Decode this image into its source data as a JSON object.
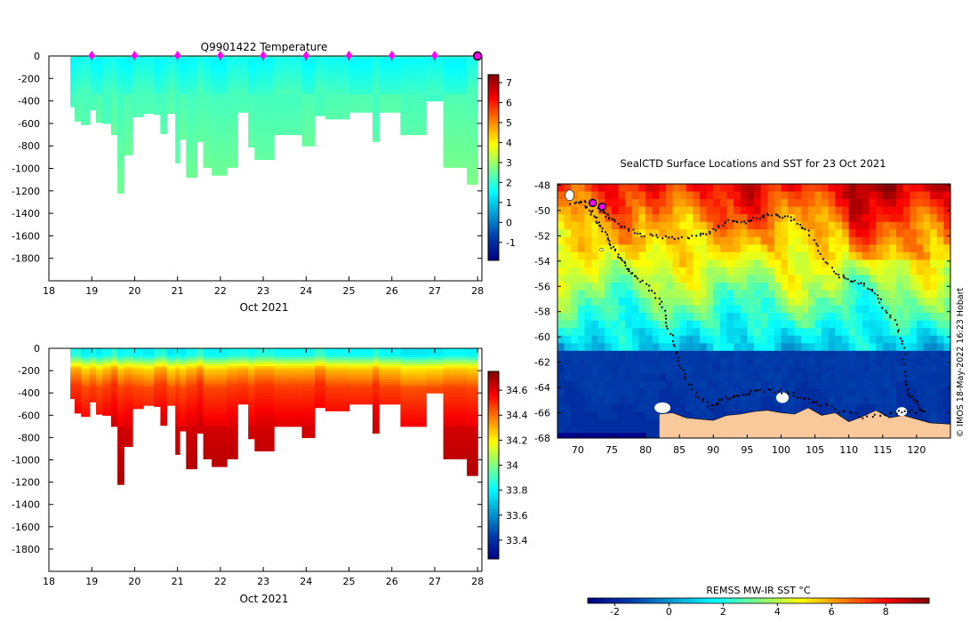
{
  "chart_data": [
    {
      "type": "heatmap",
      "id": "temperature-section",
      "title": "Q9901422  Temperature",
      "xlabel": "Oct 2021",
      "ylabel": "",
      "xlim": [
        18,
        28.1
      ],
      "ylim": [
        -2000,
        0
      ],
      "xticks": [
        18,
        19,
        20,
        21,
        22,
        23,
        24,
        25,
        26,
        27,
        28
      ],
      "yticks": [
        0,
        -200,
        -400,
        -600,
        -800,
        -1000,
        -1200,
        -1400,
        -1600,
        -1800
      ],
      "colorbar": {
        "min": -1.9,
        "max": 7.4,
        "ticks": [
          7,
          6,
          5,
          4,
          3,
          2,
          1,
          0,
          -1
        ]
      },
      "markers_x": [
        19,
        20,
        21,
        22,
        23,
        24,
        25,
        26,
        27
      ],
      "marker_current_x": 28,
      "profiles": [
        {
          "x0": 18.5,
          "x1": 18.6,
          "depth": 450
        },
        {
          "x0": 18.6,
          "x1": 18.75,
          "depth": 580
        },
        {
          "x0": 18.75,
          "x1": 18.95,
          "depth": 610
        },
        {
          "x0": 18.95,
          "x1": 19.1,
          "depth": 480
        },
        {
          "x0": 19.1,
          "x1": 19.25,
          "depth": 590
        },
        {
          "x0": 19.25,
          "x1": 19.45,
          "depth": 600
        },
        {
          "x0": 19.45,
          "x1": 19.6,
          "depth": 700
        },
        {
          "x0": 19.6,
          "x1": 19.75,
          "depth": 1220
        },
        {
          "x0": 19.75,
          "x1": 19.95,
          "depth": 880
        },
        {
          "x0": 19.95,
          "x1": 20.2,
          "depth": 540
        },
        {
          "x0": 20.2,
          "x1": 20.45,
          "depth": 510
        },
        {
          "x0": 20.45,
          "x1": 20.6,
          "depth": 520
        },
        {
          "x0": 20.6,
          "x1": 20.75,
          "depth": 690
        },
        {
          "x0": 20.75,
          "x1": 20.95,
          "depth": 510
        },
        {
          "x0": 20.95,
          "x1": 21.05,
          "depth": 950
        },
        {
          "x0": 21.05,
          "x1": 21.2,
          "depth": 740
        },
        {
          "x0": 21.2,
          "x1": 21.45,
          "depth": 1080
        },
        {
          "x0": 21.45,
          "x1": 21.6,
          "depth": 760
        },
        {
          "x0": 21.6,
          "x1": 21.8,
          "depth": 990
        },
        {
          "x0": 21.8,
          "x1": 22.15,
          "depth": 1060
        },
        {
          "x0": 22.15,
          "x1": 22.4,
          "depth": 990
        },
        {
          "x0": 22.4,
          "x1": 22.65,
          "depth": 500
        },
        {
          "x0": 22.65,
          "x1": 22.8,
          "depth": 810
        },
        {
          "x0": 22.8,
          "x1": 23.25,
          "depth": 920
        },
        {
          "x0": 23.25,
          "x1": 23.9,
          "depth": 700
        },
        {
          "x0": 23.9,
          "x1": 24.2,
          "depth": 800
        },
        {
          "x0": 24.2,
          "x1": 24.45,
          "depth": 530
        },
        {
          "x0": 24.45,
          "x1": 25.0,
          "depth": 560
        },
        {
          "x0": 25.0,
          "x1": 25.55,
          "depth": 500
        },
        {
          "x0": 25.55,
          "x1": 25.7,
          "depth": 760
        },
        {
          "x0": 25.7,
          "x1": 26.2,
          "depth": 500
        },
        {
          "x0": 26.2,
          "x1": 26.8,
          "depth": 700
        },
        {
          "x0": 26.8,
          "x1": 27.2,
          "depth": 400
        },
        {
          "x0": 27.2,
          "x1": 27.75,
          "depth": 990
        },
        {
          "x0": 27.75,
          "x1": 28.0,
          "depth": 1140
        }
      ]
    },
    {
      "type": "heatmap",
      "id": "salinity-section",
      "title": "",
      "xlabel": "Oct 2021",
      "ylabel": "",
      "xlim": [
        18,
        28.1
      ],
      "ylim": [
        -2000,
        0
      ],
      "xticks": [
        18,
        19,
        20,
        21,
        22,
        23,
        24,
        25,
        26,
        27,
        28
      ],
      "yticks": [
        0,
        -200,
        -400,
        -600,
        -800,
        -1000,
        -1200,
        -1400,
        -1600,
        -1800
      ],
      "colorbar": {
        "min": 33.25,
        "max": 34.75,
        "ticks": [
          "34.6",
          "34.4",
          "34.2",
          "34",
          "33.8",
          "33.6",
          "33.4"
        ]
      }
    },
    {
      "type": "heatmap",
      "id": "sst-map",
      "title": "SealCTD Surface Locations and SST for 23 Oct 2021",
      "xlabel": "",
      "ylabel": "",
      "xlim": [
        67,
        125
      ],
      "ylim": [
        -68,
        -47.9
      ],
      "xticks": [
        70,
        75,
        80,
        85,
        90,
        95,
        100,
        105,
        110,
        115,
        120
      ],
      "yticks": [
        -48,
        -50,
        -52,
        -54,
        -56,
        -58,
        -60,
        -62,
        -64,
        -66,
        -68
      ],
      "colorbar": {
        "label": "REMSS MW-IR SST °C",
        "min": -3,
        "max": 9.6,
        "ticks": [
          -2,
          0,
          2,
          4,
          6,
          8
        ]
      },
      "track": [
        [
          69,
          -49.4
        ],
        [
          71,
          -49.3
        ],
        [
          73,
          -49.7
        ],
        [
          74,
          -50.3
        ],
        [
          75,
          -50.6
        ],
        [
          77,
          -51.4
        ],
        [
          79,
          -51.9
        ],
        [
          82,
          -52.1
        ],
        [
          85,
          -52.2
        ],
        [
          88,
          -52.0
        ],
        [
          90,
          -51.6
        ],
        [
          92,
          -50.8
        ],
        [
          94,
          -51.0
        ],
        [
          96,
          -50.7
        ],
        [
          98,
          -50.4
        ],
        [
          100,
          -50.4
        ],
        [
          102,
          -50.8
        ],
        [
          104,
          -51.7
        ],
        [
          106,
          -53.5
        ],
        [
          108,
          -55.0
        ],
        [
          110,
          -55.5
        ],
        [
          112,
          -55.8
        ],
        [
          114,
          -56.5
        ],
        [
          115,
          -57.8
        ],
        [
          117,
          -59.0
        ],
        [
          118,
          -61.0
        ],
        [
          118.5,
          -63.5
        ],
        [
          119,
          -64.6
        ],
        [
          120,
          -65.2
        ],
        [
          121,
          -65.9
        ],
        [
          119,
          -65.9
        ],
        [
          116,
          -66.0
        ],
        [
          112,
          -66.3
        ],
        [
          109,
          -65.9
        ],
        [
          106,
          -65.3
        ],
        [
          104,
          -65.0
        ],
        [
          102,
          -64.6
        ],
        [
          100,
          -64.3
        ],
        [
          97,
          -64.2
        ],
        [
          95,
          -64.4
        ],
        [
          93,
          -64.7
        ],
        [
          91,
          -65.0
        ],
        [
          90,
          -65.6
        ],
        [
          88,
          -64.9
        ],
        [
          86,
          -63.4
        ],
        [
          85,
          -62.0
        ],
        [
          84,
          -60.3
        ],
        [
          83,
          -58.5
        ],
        [
          82,
          -57.0
        ],
        [
          80,
          -55.8
        ],
        [
          78,
          -55.0
        ],
        [
          77,
          -54.4
        ],
        [
          76,
          -53.6
        ],
        [
          75,
          -52.7
        ],
        [
          74,
          -51.8
        ],
        [
          73,
          -50.9
        ],
        [
          72,
          -50.1
        ],
        [
          71,
          -49.6
        ]
      ],
      "current_positions": [
        [
          72.2,
          -49.4
        ],
        [
          73.6,
          -49.7
        ]
      ]
    }
  ],
  "map_credit": "© IMOS 18-May-2022 16:23 Hobart",
  "colors": {
    "background": "#ffffff",
    "axis": "#000000",
    "marker": "#ff00ff",
    "land": "#f9c89b",
    "ice": "#ffffff"
  }
}
